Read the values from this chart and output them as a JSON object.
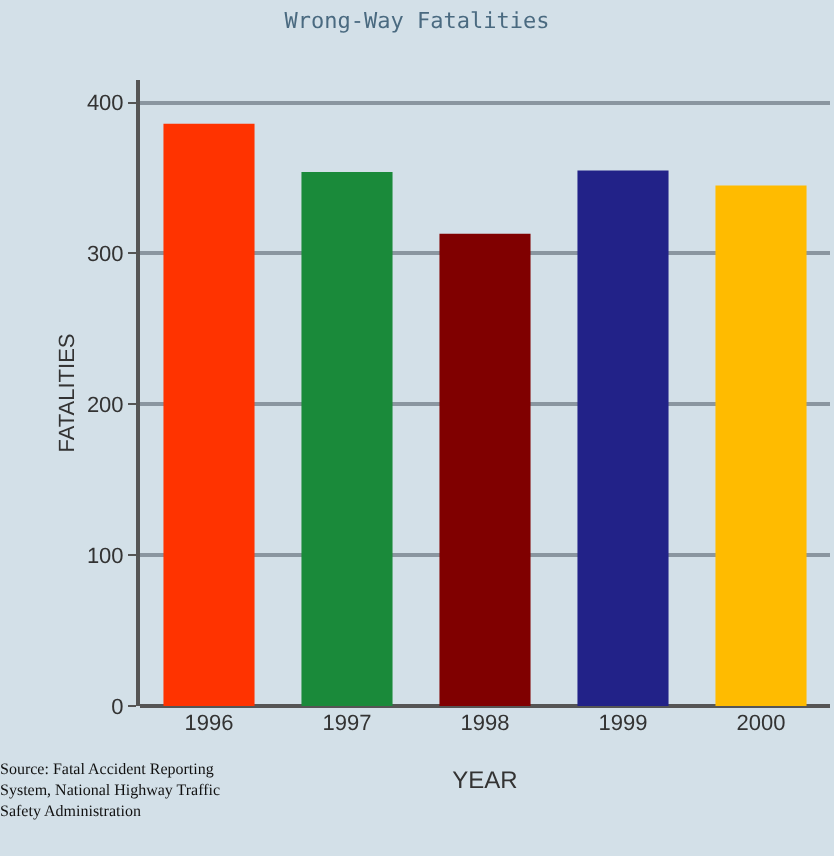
{
  "chart_data": {
    "type": "bar",
    "title": "Wrong-Way Fatalities",
    "xlabel": "YEAR",
    "ylabel": "FATALITIES",
    "categories": [
      "1996",
      "1997",
      "1998",
      "1999",
      "2000"
    ],
    "values": [
      386,
      354,
      313,
      355,
      345
    ],
    "colors": [
      "#ff3300",
      "#1a8a3a",
      "#800000",
      "#222288",
      "#ffbb00"
    ],
    "ylim": [
      0,
      415
    ],
    "yticks": [
      0,
      100,
      200,
      300,
      400
    ],
    "grid": "y",
    "annotations": [
      "Source: Fatal Accident Reporting System, National Highway Traffic Safety Administration"
    ]
  }
}
